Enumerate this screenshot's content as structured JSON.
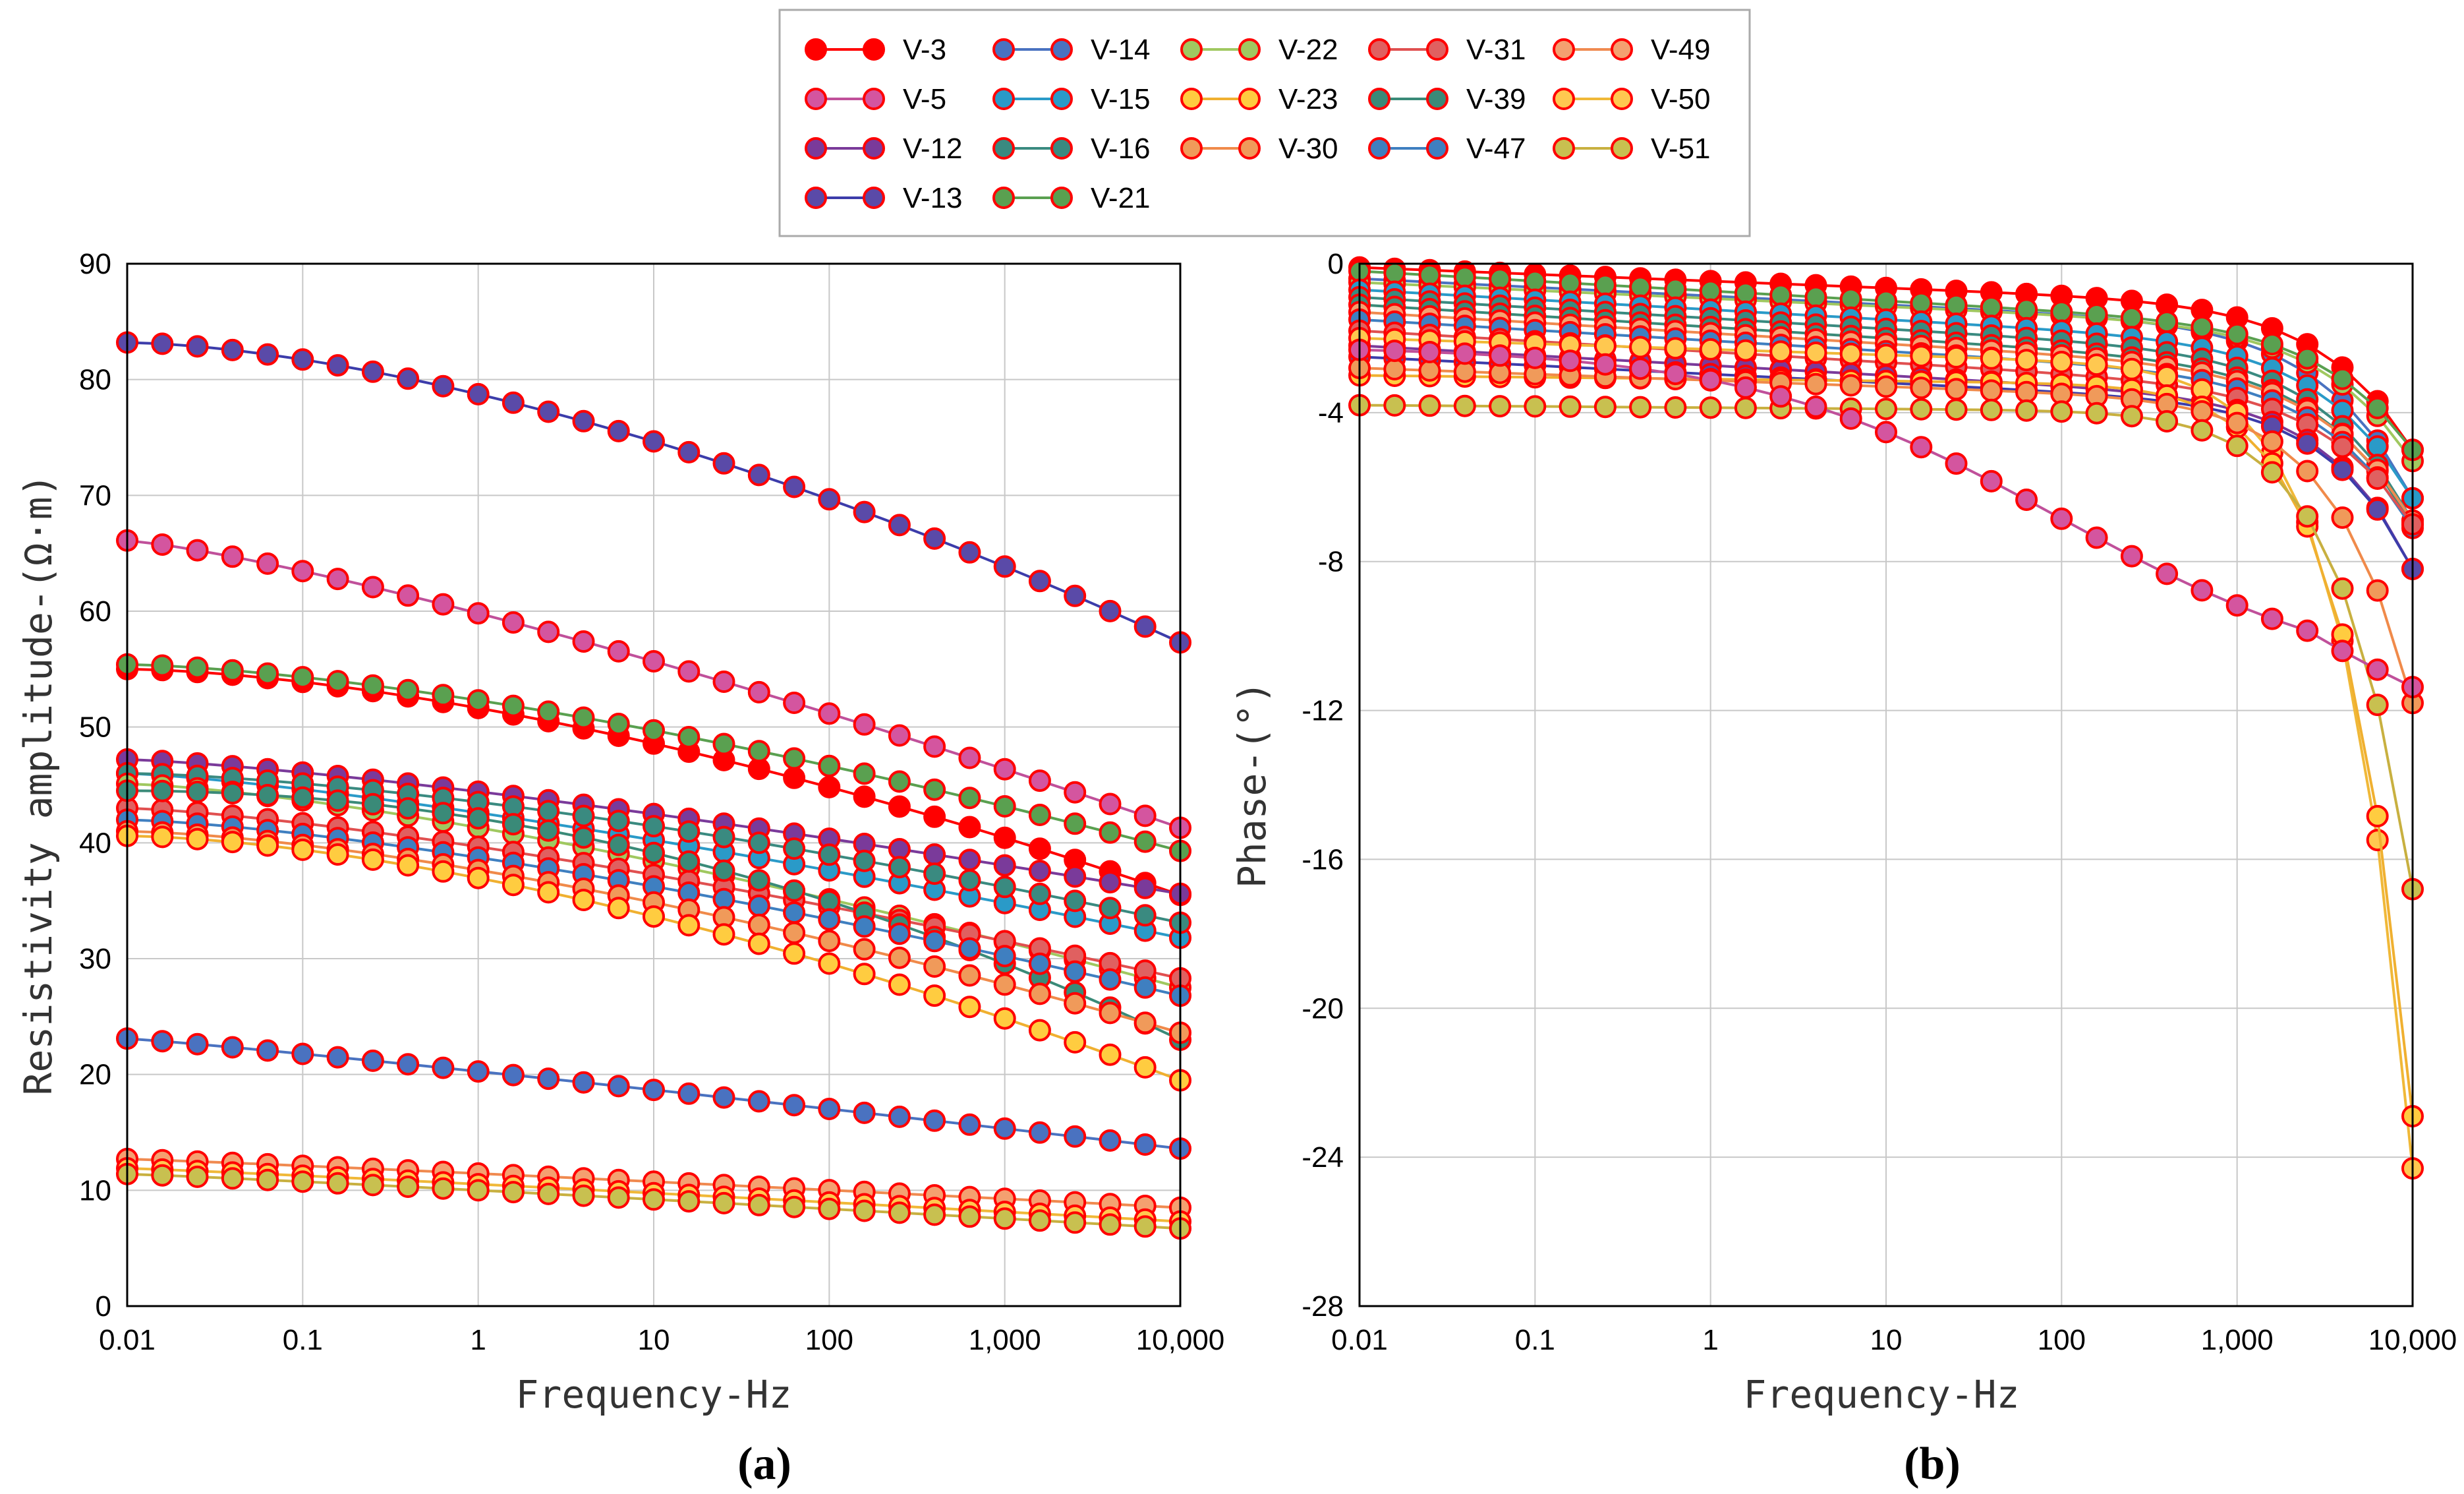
{
  "chart_data": [
    {
      "panel_label": "(a)",
      "type": "line",
      "x_scale": "log",
      "xlabel": "Frequency-Hz",
      "ylabel": "Resistivity amplitude-(Ω·m)",
      "xlim": [
        0.01,
        10000
      ],
      "ylim": [
        0,
        90
      ],
      "x_ticks": [
        0.01,
        0.1,
        1,
        10,
        100,
        1000,
        10000
      ],
      "x_tick_labels": [
        "0.01",
        "0.1",
        "1",
        "10",
        "100",
        "1,000",
        "10,000"
      ],
      "y_ticks": [
        0,
        10,
        20,
        30,
        40,
        50,
        60,
        70,
        80,
        90
      ],
      "y_tick_labels": [
        "0",
        "10",
        "20",
        "30",
        "40",
        "50",
        "60",
        "70",
        "80",
        "90"
      ],
      "curves": [
        {
          "name": "V-13",
          "start": 83.2,
          "end": 57.3,
          "shape": 1.6
        },
        {
          "name": "V-5",
          "start": 66.1,
          "end": 41.3,
          "shape": 1.25
        },
        {
          "name": "V-3",
          "start": 55.0,
          "end": 35.5,
          "shape": 1.6
        },
        {
          "name": "V-21",
          "start": 55.4,
          "end": 39.3,
          "shape": 1.5
        },
        {
          "name": "V-12",
          "start": 47.2,
          "end": 35.6,
          "shape": 1.3
        },
        {
          "name": "V-15",
          "start": 46.0,
          "end": 31.8,
          "shape": 1.3
        },
        {
          "name": "V-16",
          "start": 46.0,
          "end": 33.1,
          "shape": 1.5
        },
        {
          "name": "V-22",
          "start": 45.1,
          "end": 27.5,
          "shape": 1.4
        },
        {
          "name": "V-31",
          "start": 43.0,
          "end": 28.3,
          "shape": 1.35
        },
        {
          "name": "V-39",
          "start": 44.5,
          "end": 23.0,
          "shape": 2.0
        },
        {
          "name": "V-47",
          "start": 42.0,
          "end": 26.8,
          "shape": 1.4
        },
        {
          "name": "V-30",
          "start": 41.0,
          "end": 23.6,
          "shape": 1.5
        },
        {
          "name": "V-23",
          "start": 40.6,
          "end": 19.5,
          "shape": 1.6
        },
        {
          "name": "V-14",
          "start": 23.1,
          "end": 13.6,
          "shape": 1.1
        },
        {
          "name": "V-49",
          "start": 12.7,
          "end": 8.5,
          "shape": 1.1
        },
        {
          "name": "V-50",
          "start": 11.9,
          "end": 7.3,
          "shape": 1.1
        },
        {
          "name": "V-51",
          "start": 11.4,
          "end": 6.7,
          "shape": 1.1
        }
      ]
    },
    {
      "panel_label": "(b)",
      "type": "line",
      "x_scale": "log",
      "xlabel": "Frequency-Hz",
      "ylabel": "Phase-(°)",
      "xlim": [
        0.01,
        10000
      ],
      "ylim": [
        -28,
        0
      ],
      "x_ticks": [
        0.01,
        0.1,
        1,
        10,
        100,
        1000,
        10000
      ],
      "x_tick_labels": [
        "0.01",
        "0.1",
        "1",
        "10",
        "100",
        "1,000",
        "10,000"
      ],
      "y_ticks": [
        0,
        -4,
        -8,
        -12,
        -16,
        -20,
        -24,
        -28
      ],
      "y_tick_labels": [
        "0",
        "-4",
        "-8",
        "-12",
        "-16",
        "-20",
        "-24",
        "-28"
      ],
      "curves": [
        {
          "name": "V-3",
          "kind": "drop",
          "base0": -0.1,
          "base1": -1.2,
          "drop": 3.8,
          "k": 2.0
        },
        {
          "name": "V-14",
          "kind": "drop",
          "base0": -0.4,
          "base1": -1.8,
          "drop": 4.5,
          "k": 2.0
        },
        {
          "name": "V-22",
          "kind": "drop",
          "base0": -0.5,
          "base1": -1.8,
          "drop": 3.5,
          "k": 2.0
        },
        {
          "name": "V-21",
          "kind": "drop",
          "base0": -0.2,
          "base1": -1.8,
          "drop": 3.2,
          "k": 2.0
        },
        {
          "name": "V-15",
          "kind": "drop",
          "base0": -0.7,
          "base1": -2.3,
          "drop": 4.0,
          "k": 2.0
        },
        {
          "name": "V-16",
          "kind": "drop",
          "base0": -0.9,
          "base1": -2.6,
          "drop": 4.3,
          "k": 2.0
        },
        {
          "name": "V-39",
          "kind": "drop",
          "base0": -1.1,
          "base1": -2.9,
          "drop": 4.1,
          "k": 2.0
        },
        {
          "name": "V-49",
          "kind": "drop",
          "base0": -1.3,
          "base1": -3.0,
          "drop": 3.9,
          "k": 2.0
        },
        {
          "name": "V-47",
          "kind": "drop",
          "base0": -1.5,
          "base1": -3.2,
          "drop": 3.9,
          "k": 2.0
        },
        {
          "name": "V-31",
          "kind": "drop",
          "base0": -1.8,
          "base1": -3.5,
          "drop": 3.5,
          "k": 2.0
        },
        {
          "name": "V-12",
          "kind": "drop",
          "base0": -2.2,
          "base1": -3.8,
          "drop": 4.4,
          "k": 2.2
        },
        {
          "name": "V-13",
          "kind": "drop",
          "base0": -2.5,
          "base1": -3.9,
          "drop": 4.3,
          "k": 2.2
        },
        {
          "name": "V-50",
          "kind": "drop",
          "base0": -2.0,
          "base1": -2.9,
          "drop": 21.4,
          "k": 2.6
        },
        {
          "name": "V-23",
          "kind": "drop",
          "base0": -3.0,
          "base1": -3.3,
          "drop": 19.6,
          "k": 2.6
        },
        {
          "name": "V-30",
          "kind": "drop",
          "base0": -2.8,
          "base1": -3.8,
          "drop": 8.0,
          "k": 2.3
        },
        {
          "name": "V-51",
          "kind": "drop",
          "base0": -3.8,
          "base1": -4.0,
          "drop": 12.8,
          "k": 2.4
        },
        {
          "name": "V-5",
          "kind": "sigmoid",
          "base0": -2.2,
          "mid": 2,
          "amp": 9.3,
          "k": 1.1,
          "tail_from": 3.4,
          "tail": 0.8
        }
      ]
    }
  ],
  "legend": [
    {
      "name": "V-3",
      "face": "#ff0000",
      "line": "#ff0000"
    },
    {
      "name": "V-5",
      "face": "#d4559f",
      "line": "#c0509a"
    },
    {
      "name": "V-12",
      "face": "#7a3a9a",
      "line": "#7a3a9a"
    },
    {
      "name": "V-13",
      "face": "#5a4aa8",
      "line": "#3c3caa"
    },
    {
      "name": "V-14",
      "face": "#4a72c0",
      "line": "#4a72c0"
    },
    {
      "name": "V-15",
      "face": "#2a9ac8",
      "line": "#2a9ac8"
    },
    {
      "name": "V-16",
      "face": "#3a8a80",
      "line": "#3a8a80"
    },
    {
      "name": "V-21",
      "face": "#5aa050",
      "line": "#5aa050"
    },
    {
      "name": "V-22",
      "face": "#a0c860",
      "line": "#a0c860"
    },
    {
      "name": "V-23",
      "face": "#ffcc40",
      "line": "#f0b030"
    },
    {
      "name": "V-30",
      "face": "#f09a5a",
      "line": "#f08a4a"
    },
    {
      "name": "V-31",
      "face": "#e06060",
      "line": "#e05050"
    },
    {
      "name": "V-39",
      "face": "#3a8a78",
      "line": "#3a8a78"
    },
    {
      "name": "V-47",
      "face": "#3f7fc0",
      "line": "#3f7fc0"
    },
    {
      "name": "V-49",
      "face": "#f4a070",
      "line": "#f08a50"
    },
    {
      "name": "V-50",
      "face": "#ffc850",
      "line": "#f0b838"
    },
    {
      "name": "V-51",
      "face": "#c8c050",
      "line": "#c8b040"
    }
  ],
  "marker_edge_color": "#ff0000",
  "grid_color": "#c8c8c8"
}
